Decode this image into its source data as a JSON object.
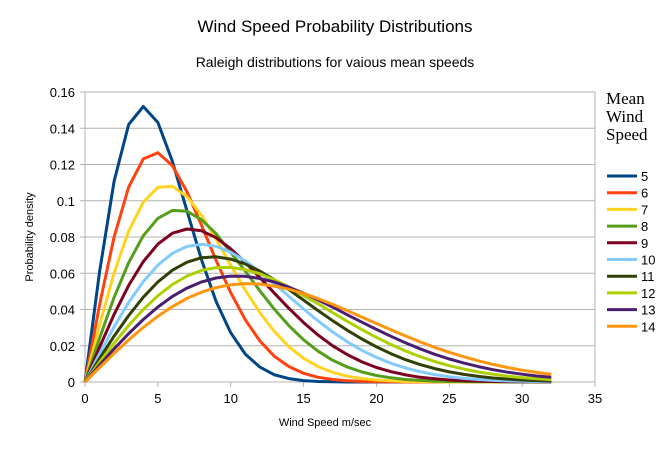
{
  "chart_data": {
    "type": "line",
    "title": "Wind Speed Probability Distributions",
    "subtitle": "Raleigh distributions for vaious mean speeds",
    "xlabel": "Wind Speed m/sec",
    "ylabel": "Probability density",
    "xlim": [
      0,
      35
    ],
    "ylim": [
      0,
      0.16
    ],
    "xticks": [
      "0",
      "5",
      "10",
      "15",
      "20",
      "25",
      "30",
      "35"
    ],
    "yticks": [
      "0",
      "0.02",
      "0.04",
      "0.06",
      "0.08",
      "0.1",
      "0.12",
      "0.14",
      "0.16"
    ],
    "grid": "horizontal",
    "legend": {
      "title_lines": [
        "Mean",
        "Wind",
        "Speed"
      ],
      "placement": "right"
    },
    "x": [
      0,
      1,
      2,
      3,
      4,
      5,
      6,
      7,
      8,
      9,
      10,
      11,
      12,
      13,
      14,
      15,
      16,
      17,
      18,
      19,
      20,
      21,
      22,
      23,
      24,
      25,
      26,
      27,
      28,
      29,
      30,
      31,
      32
    ],
    "series": [
      {
        "name": "5",
        "color": "#004586",
        "values": [
          0,
          0.0609,
          0.1108,
          0.1421,
          0.152,
          0.1432,
          0.1217,
          0.0944,
          0.0673,
          0.0444,
          0.0272,
          0.0154,
          0.0082,
          0.004,
          0.0019,
          0.0008,
          0.0003,
          0.0001,
          0,
          0,
          0,
          0,
          0,
          0,
          0,
          0,
          0,
          0,
          0,
          0,
          0,
          0,
          0
        ]
      },
      {
        "name": "6",
        "color": "#ff420e",
        "values": [
          0,
          0.0427,
          0.08,
          0.1076,
          0.1231,
          0.1265,
          0.1194,
          0.1049,
          0.0864,
          0.0671,
          0.0493,
          0.0343,
          0.0226,
          0.0142,
          0.0085,
          0.0048,
          0.0026,
          0.0014,
          0.0007,
          0.0003,
          0.0001,
          0.0001,
          0,
          0,
          0,
          0,
          0,
          0,
          0,
          0,
          0,
          0,
          0
        ]
      },
      {
        "name": "7",
        "color": "#ffd320",
        "values": [
          0,
          0.0316,
          0.0601,
          0.0833,
          0.0992,
          0.1074,
          0.108,
          0.1023,
          0.0919,
          0.0788,
          0.0645,
          0.0507,
          0.0383,
          0.0278,
          0.0194,
          0.0131,
          0.0085,
          0.0053,
          0.0032,
          0.0019,
          0.0011,
          0.0006,
          0.0003,
          0.0002,
          0.0001,
          0,
          0,
          0,
          0,
          0,
          0,
          0,
          0
        ]
      },
      {
        "name": "8",
        "color": "#579d1c",
        "values": [
          0,
          0.0242,
          0.0467,
          0.0659,
          0.0807,
          0.0903,
          0.0947,
          0.0942,
          0.0895,
          0.0818,
          0.0715,
          0.0612,
          0.0503,
          0.0401,
          0.031,
          0.0233,
          0.017,
          0.012,
          0.0083,
          0.0056,
          0.0036,
          0.0023,
          0.0014,
          0.0009,
          0.0005,
          0.0003,
          0.0002,
          0.0001,
          0.0001,
          0,
          0,
          0,
          0
        ]
      },
      {
        "name": "9",
        "color": "#7e0021",
        "values": [
          0,
          0.0192,
          0.0373,
          0.0533,
          0.0664,
          0.0761,
          0.0821,
          0.0844,
          0.0834,
          0.0796,
          0.0735,
          0.066,
          0.0576,
          0.049,
          0.0406,
          0.0328,
          0.0259,
          0.02,
          0.0151,
          0.0111,
          0.008,
          0.0057,
          0.0039,
          0.0026,
          0.0018,
          0.0011,
          0.0007,
          0.0005,
          0.0003,
          0.0002,
          0.0001,
          0.0001,
          0
        ]
      },
      {
        "name": "10",
        "color": "#83caff",
        "values": [
          0,
          0.0156,
          0.0304,
          0.0439,
          0.0554,
          0.0645,
          0.071,
          0.0748,
          0.076,
          0.0748,
          0.0716,
          0.0668,
          0.0608,
          0.0542,
          0.0472,
          0.0403,
          0.0337,
          0.0276,
          0.0222,
          0.0175,
          0.0136,
          0.0103,
          0.0077,
          0.0057,
          0.0041,
          0.0029,
          0.002,
          0.0014,
          0.0009,
          0.0006,
          0.0004,
          0.0003,
          0.0002
        ]
      },
      {
        "name": "11",
        "color": "#314004",
        "values": [
          0,
          0.0129,
          0.0253,
          0.0367,
          0.0468,
          0.0552,
          0.0617,
          0.0661,
          0.0686,
          0.0691,
          0.0678,
          0.0651,
          0.0612,
          0.0564,
          0.0509,
          0.0452,
          0.0394,
          0.0338,
          0.0285,
          0.0237,
          0.0194,
          0.0156,
          0.0123,
          0.0096,
          0.0074,
          0.0056,
          0.0042,
          0.0031,
          0.0022,
          0.0016,
          0.0011,
          0.0008,
          0.0005
        ]
      },
      {
        "name": "12",
        "color": "#aecf00",
        "values": [
          0,
          0.0109,
          0.0214,
          0.0312,
          0.04,
          0.0476,
          0.0538,
          0.0585,
          0.0616,
          0.0631,
          0.0632,
          0.062,
          0.0597,
          0.0564,
          0.0524,
          0.0476,
          0.0432,
          0.0383,
          0.0335,
          0.0289,
          0.0246,
          0.0207,
          0.0171,
          0.014,
          0.0113,
          0.009,
          0.0071,
          0.0055,
          0.0043,
          0.0032,
          0.0024,
          0.0018,
          0.0013
        ]
      },
      {
        "name": "13",
        "color": "#4b1f6f",
        "values": [
          0,
          0.0093,
          0.0183,
          0.0267,
          0.0345,
          0.0414,
          0.0472,
          0.0518,
          0.0552,
          0.0574,
          0.0584,
          0.0583,
          0.0571,
          0.0551,
          0.0523,
          0.049,
          0.0453,
          0.0413,
          0.0371,
          0.033,
          0.029,
          0.0252,
          0.0216,
          0.0183,
          0.0153,
          0.0127,
          0.0104,
          0.0085,
          0.0068,
          0.0054,
          0.0043,
          0.0033,
          0.0026
        ]
      },
      {
        "name": "14",
        "color": "#ff950e",
        "values": [
          0,
          0.008,
          0.0158,
          0.0232,
          0.0301,
          0.0363,
          0.0416,
          0.0461,
          0.0496,
          0.0521,
          0.0537,
          0.0543,
          0.054,
          0.0529,
          0.0512,
          0.0488,
          0.046,
          0.0428,
          0.0394,
          0.0358,
          0.0323,
          0.0288,
          0.0254,
          0.0221,
          0.0191,
          0.0164,
          0.0139,
          0.0117,
          0.0097,
          0.008,
          0.0065,
          0.0053,
          0.0042
        ]
      }
    ]
  }
}
